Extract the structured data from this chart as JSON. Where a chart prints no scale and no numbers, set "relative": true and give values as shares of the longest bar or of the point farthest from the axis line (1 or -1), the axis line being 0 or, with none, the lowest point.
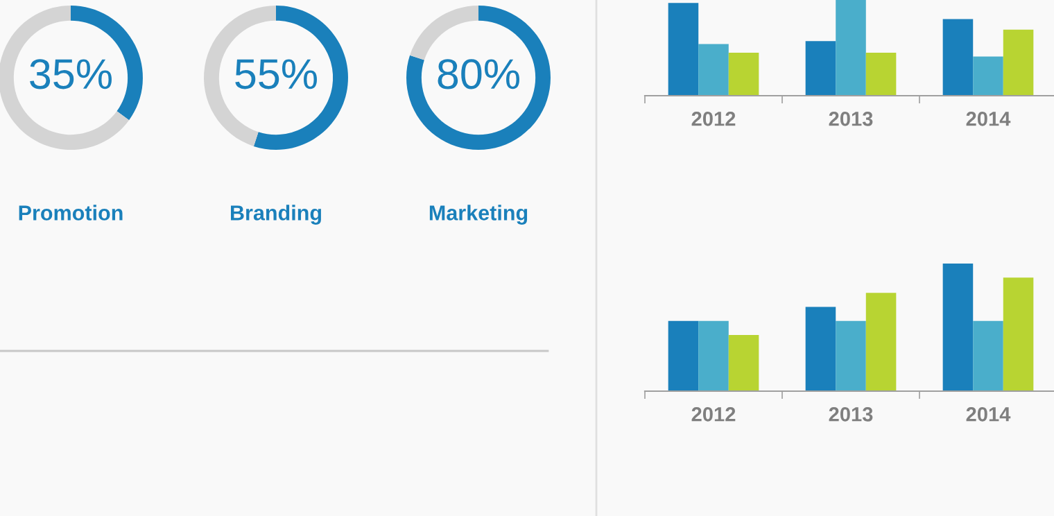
{
  "chart_data": [
    {
      "type": "donut",
      "title": "Promotion",
      "categories": [
        null,
        null
      ],
      "values": [
        35,
        65
      ],
      "colors": [
        "#1a80bb",
        "#d4d4d4"
      ],
      "value_labels": [
        "35%",
        null
      ]
    },
    {
      "type": "donut",
      "title": "Branding",
      "categories": [
        null,
        null
      ],
      "values": [
        55,
        45
      ],
      "colors": [
        "#1a80bb",
        "#d4d4d4"
      ],
      "value_labels": [
        "55%",
        null
      ]
    },
    {
      "type": "donut",
      "title": "Marketing",
      "categories": [
        null,
        null
      ],
      "values": [
        80,
        20
      ],
      "colors": [
        "#1a80bb",
        "#d4d4d4"
      ],
      "value_labels": [
        "80%",
        null
      ]
    },
    {
      "type": "bar",
      "relative": true,
      "categories": [
        "2012",
        "2013",
        "2014"
      ],
      "series": [
        {
          "color": "#1a80bb",
          "values": [
            0.97,
            0.57,
            0.8
          ]
        },
        {
          "color": "#4aaecb",
          "values": [
            0.54,
            1,
            0.41
          ]
        },
        {
          "color": "#b8d432",
          "values": [
            0.45,
            0.45,
            0.69
          ]
        }
      ]
    },
    {
      "type": "bar",
      "relative": true,
      "categories": [
        "2012",
        "2013",
        "2014"
      ],
      "series": [
        {
          "color": "#1a80bb",
          "values": [
            0.55,
            0.66,
            1
          ]
        },
        {
          "color": "#4aaecb",
          "values": [
            0.55,
            0.55,
            0.55
          ]
        },
        {
          "color": "#b8d432",
          "values": [
            0.44,
            0.77,
            0.89
          ]
        }
      ]
    }
  ]
}
